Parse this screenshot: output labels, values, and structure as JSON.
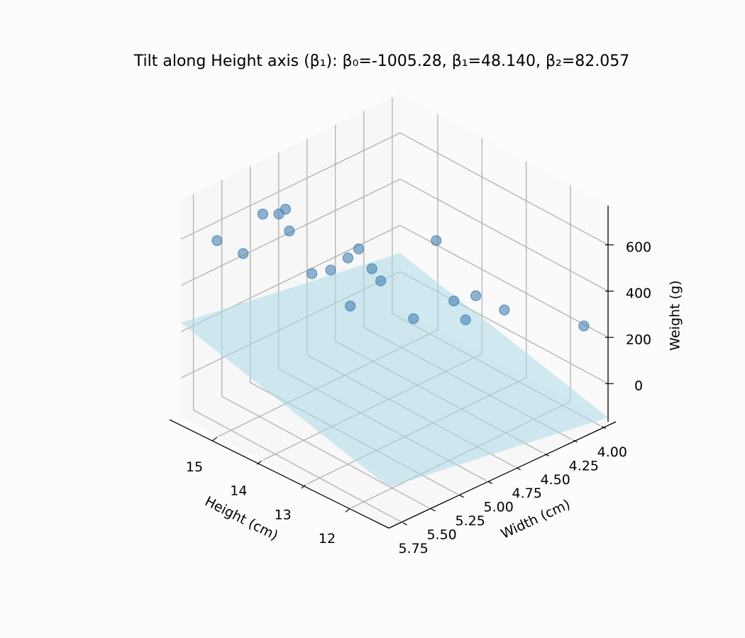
{
  "chart_data": {
    "type": "scatter3d",
    "title": "Tilt along Height axis (β₁): β₀=-1005.28, β₁=48.140, β₂=82.057",
    "xlabel": "Height (cm)",
    "ylabel": "Width (cm)",
    "zlabel": "Weight (g)",
    "x": [
      15.52,
      15.06,
      15.63,
      15.46,
      15.54,
      15.35,
      14.79,
      14.75,
      14.72,
      14.76,
      14.46,
      14.21,
      14.23,
      13.7,
      14.24,
      13.12,
      12.83,
      13.19,
      12.57,
      11.57
    ],
    "y": [
      5.67,
      5.62,
      5.225,
      5.15,
      5.06,
      5.1,
      5.12,
      4.97,
      4.83,
      4.72,
      4.72,
      4.74,
      5.0,
      4.65,
      4.24,
      4.52,
      4.53,
      4.3,
      4.29,
      3.98
    ],
    "z": [
      583,
      562,
      580,
      580,
      571,
      506,
      384,
      368,
      390,
      399,
      344,
      322,
      273,
      190,
      374,
      295,
      246,
      258,
      258,
      218
    ],
    "color": "#4682b4",
    "plane": {
      "b0": -1005.28,
      "b1": 48.14,
      "b2": 82.057,
      "color": "#add8e6"
    },
    "xlim": [
      11.15,
      15.85
    ],
    "ylim": [
      3.93,
      5.86
    ],
    "zlim": [
      -165,
      770
    ],
    "xticks": [
      12,
      13,
      14,
      15
    ],
    "yticks": [
      {
        "value": 4,
        "label": "4.00"
      },
      4.25,
      {
        "value": 4.5,
        "label": "4.50"
      },
      4.75,
      {
        "value": 5,
        "label": "5.00"
      },
      5.25,
      {
        "value": 5.5,
        "label": "5.50"
      },
      5.75
    ],
    "zticks": [
      0,
      200,
      400,
      600
    ],
    "grid": true
  }
}
